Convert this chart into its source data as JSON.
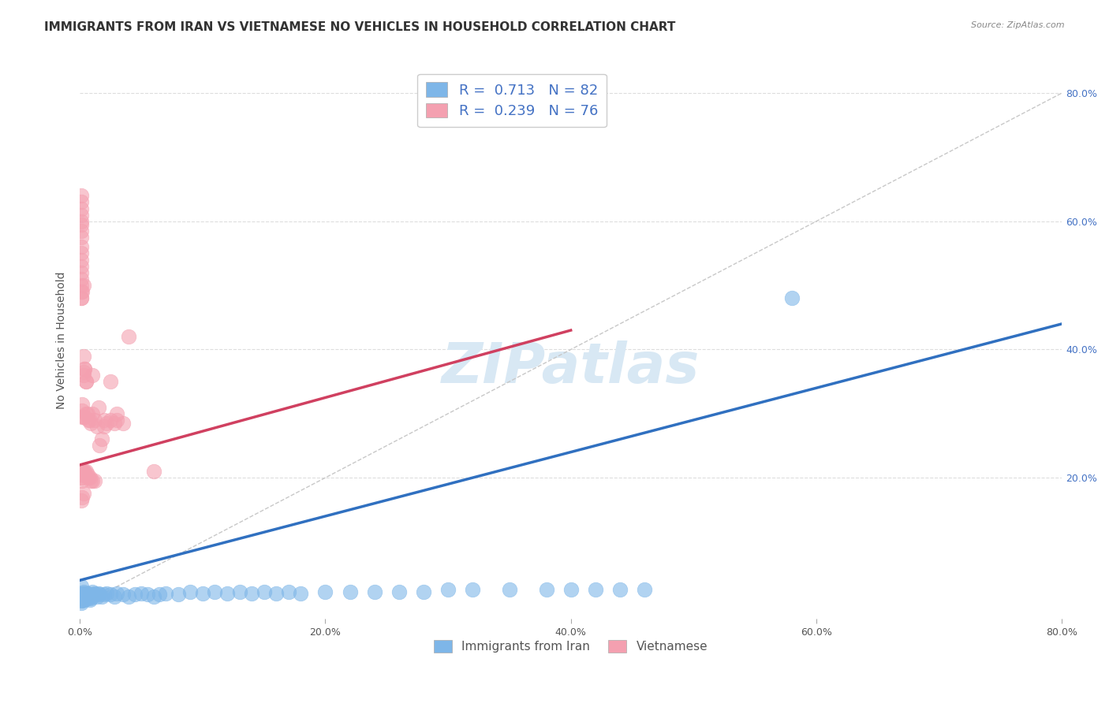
{
  "title": "IMMIGRANTS FROM IRAN VS VIETNAMESE NO VEHICLES IN HOUSEHOLD CORRELATION CHART",
  "source": "Source: ZipAtlas.com",
  "ylabel": "No Vehicles in Household",
  "xlabel_iran": "Immigrants from Iran",
  "xlabel_vietnamese": "Vietnamese",
  "xlim": [
    0,
    0.8
  ],
  "ylim": [
    -0.02,
    0.85
  ],
  "xtick_labels": [
    "0.0%",
    "20.0%",
    "40.0%",
    "60.0%",
    "80.0%"
  ],
  "xtick_values": [
    0.0,
    0.2,
    0.4,
    0.6,
    0.8
  ],
  "ytick_labels_right": [
    "20.0%",
    "40.0%",
    "60.0%",
    "80.0%"
  ],
  "ytick_values_right": [
    0.2,
    0.4,
    0.6,
    0.8
  ],
  "R_iran": 0.713,
  "N_iran": 82,
  "R_vietnamese": 0.239,
  "N_vietnamese": 76,
  "blue_color": "#7EB6E8",
  "pink_color": "#F4A0B0",
  "blue_line_color": "#3070C0",
  "pink_line_color": "#D04060",
  "diagonal_color": "#C8C8C8",
  "watermark_color": "#D8E8F4",
  "background_color": "#FFFFFF",
  "title_fontsize": 11,
  "axis_label_fontsize": 10,
  "tick_fontsize": 9,
  "legend_fontsize": 12,
  "iran_x": [
    0.001,
    0.001,
    0.001,
    0.001,
    0.002,
    0.002,
    0.002,
    0.002,
    0.002,
    0.003,
    0.003,
    0.003,
    0.003,
    0.004,
    0.004,
    0.004,
    0.005,
    0.005,
    0.005,
    0.006,
    0.006,
    0.007,
    0.007,
    0.008,
    0.008,
    0.009,
    0.009,
    0.01,
    0.01,
    0.011,
    0.012,
    0.013,
    0.014,
    0.015,
    0.016,
    0.018,
    0.02,
    0.022,
    0.025,
    0.028,
    0.03,
    0.035,
    0.04,
    0.045,
    0.05,
    0.055,
    0.06,
    0.065,
    0.07,
    0.08,
    0.09,
    0.1,
    0.11,
    0.12,
    0.13,
    0.14,
    0.15,
    0.16,
    0.17,
    0.18,
    0.2,
    0.22,
    0.24,
    0.26,
    0.28,
    0.3,
    0.32,
    0.35,
    0.38,
    0.4,
    0.42,
    0.44,
    0.46,
    0.001,
    0.002,
    0.003,
    0.004,
    0.005,
    0.006,
    0.008,
    0.58,
    0.001
  ],
  "iran_y": [
    0.03,
    0.02,
    0.012,
    0.008,
    0.018,
    0.015,
    0.012,
    0.01,
    0.008,
    0.022,
    0.018,
    0.015,
    0.01,
    0.02,
    0.015,
    0.01,
    0.018,
    0.015,
    0.012,
    0.02,
    0.015,
    0.018,
    0.012,
    0.015,
    0.01,
    0.018,
    0.012,
    0.022,
    0.015,
    0.018,
    0.02,
    0.018,
    0.015,
    0.02,
    0.018,
    0.015,
    0.018,
    0.02,
    0.018,
    0.015,
    0.02,
    0.018,
    0.015,
    0.018,
    0.02,
    0.018,
    0.015,
    0.018,
    0.02,
    0.018,
    0.022,
    0.02,
    0.022,
    0.02,
    0.022,
    0.02,
    0.022,
    0.02,
    0.022,
    0.02,
    0.022,
    0.022,
    0.022,
    0.022,
    0.022,
    0.025,
    0.025,
    0.025,
    0.025,
    0.025,
    0.025,
    0.025,
    0.025,
    0.015,
    0.018,
    0.02,
    0.015,
    0.018,
    0.02,
    0.018,
    0.48,
    0.005
  ],
  "vietnamese_x": [
    0.001,
    0.001,
    0.001,
    0.001,
    0.001,
    0.001,
    0.001,
    0.001,
    0.001,
    0.001,
    0.001,
    0.001,
    0.001,
    0.001,
    0.001,
    0.001,
    0.001,
    0.001,
    0.001,
    0.001,
    0.002,
    0.002,
    0.002,
    0.002,
    0.002,
    0.002,
    0.002,
    0.002,
    0.003,
    0.003,
    0.003,
    0.003,
    0.003,
    0.004,
    0.004,
    0.004,
    0.005,
    0.005,
    0.005,
    0.006,
    0.006,
    0.007,
    0.007,
    0.008,
    0.008,
    0.009,
    0.009,
    0.01,
    0.01,
    0.012,
    0.012,
    0.014,
    0.016,
    0.018,
    0.02,
    0.022,
    0.025,
    0.028,
    0.03,
    0.035,
    0.001,
    0.002,
    0.003,
    0.001,
    0.002,
    0.003,
    0.003,
    0.004,
    0.005,
    0.01,
    0.015,
    0.02,
    0.025,
    0.03,
    0.04,
    0.06
  ],
  "vietnamese_y": [
    0.64,
    0.63,
    0.62,
    0.61,
    0.6,
    0.595,
    0.585,
    0.575,
    0.56,
    0.55,
    0.54,
    0.53,
    0.52,
    0.51,
    0.5,
    0.49,
    0.48,
    0.2,
    0.205,
    0.21,
    0.21,
    0.205,
    0.2,
    0.195,
    0.315,
    0.305,
    0.295,
    0.205,
    0.36,
    0.365,
    0.295,
    0.205,
    0.21,
    0.37,
    0.295,
    0.21,
    0.35,
    0.3,
    0.21,
    0.3,
    0.205,
    0.29,
    0.2,
    0.29,
    0.2,
    0.285,
    0.195,
    0.3,
    0.195,
    0.29,
    0.195,
    0.28,
    0.25,
    0.26,
    0.28,
    0.285,
    0.29,
    0.285,
    0.29,
    0.285,
    0.48,
    0.49,
    0.5,
    0.165,
    0.17,
    0.175,
    0.39,
    0.37,
    0.35,
    0.36,
    0.31,
    0.29,
    0.35,
    0.3,
    0.42,
    0.21
  ],
  "blue_line_x": [
    0.0,
    0.8
  ],
  "blue_line_y": [
    0.04,
    0.44
  ],
  "pink_line_x": [
    0.0,
    0.4
  ],
  "pink_line_y": [
    0.22,
    0.43
  ]
}
